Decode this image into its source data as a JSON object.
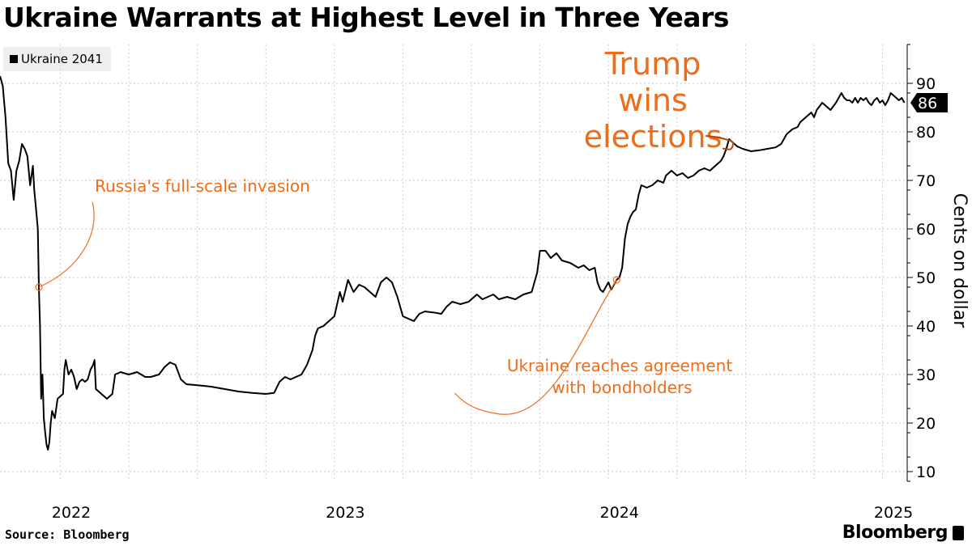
{
  "header": {
    "title": "Ukraine Warrants at Highest Level in Three Years"
  },
  "legend": {
    "label": "Ukraine 2041"
  },
  "footer": {
    "source": "Source: Bloomberg",
    "brand": "Bloomberg"
  },
  "colors": {
    "line": "#000000",
    "annotation": "#ef6c1a",
    "grid": "#cccccc"
  },
  "chart_data": {
    "type": "line",
    "title": "Ukraine Warrants at Highest Level in Three Years",
    "ylabel": "Cents on dollar",
    "ylim": [
      8,
      98
    ],
    "yticks": [
      10,
      20,
      30,
      40,
      50,
      60,
      70,
      80,
      90
    ],
    "xlim": [
      2021.78,
      2025.09
    ],
    "xticks": [
      {
        "label": "2022",
        "x": 2022.0
      },
      {
        "label": "2023",
        "x": 2023.0
      },
      {
        "label": "2024",
        "x": 2024.0
      },
      {
        "label": "2025",
        "x": 2025.0
      }
    ],
    "last_value_label": "86",
    "series": [
      {
        "name": "Ukraine 2041",
        "points": [
          [
            2021.78,
            91.5
          ],
          [
            2021.79,
            89.5
          ],
          [
            2021.8,
            83
          ],
          [
            2021.81,
            73.5
          ],
          [
            2021.82,
            72
          ],
          [
            2021.83,
            66
          ],
          [
            2021.84,
            72
          ],
          [
            2021.85,
            74
          ],
          [
            2021.86,
            77.5
          ],
          [
            2021.87,
            76.5
          ],
          [
            2021.88,
            75
          ],
          [
            2021.89,
            69
          ],
          [
            2021.9,
            73
          ],
          [
            2021.905,
            68
          ],
          [
            2021.91,
            65
          ],
          [
            2021.918,
            60
          ],
          [
            2021.922,
            48
          ],
          [
            2021.926,
            40
          ],
          [
            2021.93,
            25
          ],
          [
            2021.935,
            30
          ],
          [
            2021.94,
            21
          ],
          [
            2021.945,
            18
          ],
          [
            2021.95,
            15.5
          ],
          [
            2021.955,
            14.5
          ],
          [
            2021.96,
            16
          ],
          [
            2021.965,
            20
          ],
          [
            2021.97,
            22.5
          ],
          [
            2021.98,
            21
          ],
          [
            2021.99,
            25
          ],
          [
            2022.0,
            25.5
          ],
          [
            2022.01,
            26
          ],
          [
            2022.015,
            31
          ],
          [
            2022.02,
            33
          ],
          [
            2022.03,
            30
          ],
          [
            2022.04,
            31
          ],
          [
            2022.05,
            29.5
          ],
          [
            2022.06,
            27
          ],
          [
            2022.07,
            28.5
          ],
          [
            2022.08,
            29
          ],
          [
            2022.09,
            28.5
          ],
          [
            2022.1,
            29
          ],
          [
            2022.11,
            31
          ],
          [
            2022.12,
            32
          ],
          [
            2022.125,
            33
          ],
          [
            2022.13,
            27
          ],
          [
            2022.14,
            26.5
          ],
          [
            2022.15,
            26
          ],
          [
            2022.16,
            25.5
          ],
          [
            2022.17,
            25
          ],
          [
            2022.18,
            25.5
          ],
          [
            2022.19,
            26
          ],
          [
            2022.2,
            30
          ],
          [
            2022.22,
            30.5
          ],
          [
            2022.25,
            30
          ],
          [
            2022.28,
            30.5
          ],
          [
            2022.31,
            29.5
          ],
          [
            2022.33,
            29.5
          ],
          [
            2022.36,
            30
          ],
          [
            2022.38,
            31.5
          ],
          [
            2022.4,
            32.5
          ],
          [
            2022.42,
            32
          ],
          [
            2022.44,
            29
          ],
          [
            2022.46,
            28
          ],
          [
            2022.5,
            27.8
          ],
          [
            2022.55,
            27.5
          ],
          [
            2022.6,
            27
          ],
          [
            2022.65,
            26.5
          ],
          [
            2022.7,
            26.2
          ],
          [
            2022.75,
            26
          ],
          [
            2022.78,
            26.2
          ],
          [
            2022.8,
            28.5
          ],
          [
            2022.82,
            29.5
          ],
          [
            2022.84,
            29
          ],
          [
            2022.86,
            29.5
          ],
          [
            2022.88,
            30
          ],
          [
            2022.9,
            32
          ],
          [
            2022.92,
            35
          ],
          [
            2022.93,
            38
          ],
          [
            2022.94,
            39.5
          ],
          [
            2022.96,
            40
          ],
          [
            2022.98,
            41
          ],
          [
            2023.0,
            42
          ],
          [
            2023.02,
            47
          ],
          [
            2023.03,
            45
          ],
          [
            2023.05,
            49.5
          ],
          [
            2023.07,
            47
          ],
          [
            2023.09,
            48.5
          ],
          [
            2023.11,
            48
          ],
          [
            2023.13,
            47
          ],
          [
            2023.15,
            46
          ],
          [
            2023.17,
            49
          ],
          [
            2023.19,
            50
          ],
          [
            2023.21,
            49
          ],
          [
            2023.23,
            46
          ],
          [
            2023.25,
            42
          ],
          [
            2023.27,
            41.5
          ],
          [
            2023.29,
            41
          ],
          [
            2023.31,
            42.5
          ],
          [
            2023.33,
            43
          ],
          [
            2023.36,
            42.8
          ],
          [
            2023.39,
            42.5
          ],
          [
            2023.41,
            44
          ],
          [
            2023.43,
            45
          ],
          [
            2023.46,
            44.5
          ],
          [
            2023.49,
            45
          ],
          [
            2023.52,
            46.5
          ],
          [
            2023.54,
            45.5
          ],
          [
            2023.56,
            46
          ],
          [
            2023.58,
            46.5
          ],
          [
            2023.6,
            45.5
          ],
          [
            2023.63,
            46
          ],
          [
            2023.66,
            45.5
          ],
          [
            2023.69,
            46.5
          ],
          [
            2023.72,
            47
          ],
          [
            2023.74,
            51
          ],
          [
            2023.75,
            55.5
          ],
          [
            2023.77,
            55.5
          ],
          [
            2023.79,
            54
          ],
          [
            2023.81,
            55
          ],
          [
            2023.83,
            53.5
          ],
          [
            2023.86,
            53
          ],
          [
            2023.89,
            52
          ],
          [
            2023.91,
            52.5
          ],
          [
            2023.93,
            51.5
          ],
          [
            2023.95,
            52
          ],
          [
            2023.96,
            49
          ],
          [
            2023.97,
            47.5
          ],
          [
            2023.98,
            47
          ],
          [
            2023.99,
            48
          ],
          [
            2024.0,
            49
          ],
          [
            2024.01,
            47.5
          ],
          [
            2024.02,
            48.5
          ],
          [
            2024.03,
            49.5
          ],
          [
            2024.04,
            50
          ],
          [
            2024.05,
            52
          ],
          [
            2024.06,
            58
          ],
          [
            2024.07,
            61
          ],
          [
            2024.08,
            62.5
          ],
          [
            2024.09,
            63.5
          ],
          [
            2024.1,
            64
          ],
          [
            2024.11,
            67
          ],
          [
            2024.12,
            69
          ],
          [
            2024.14,
            68.5
          ],
          [
            2024.16,
            69
          ],
          [
            2024.18,
            70
          ],
          [
            2024.2,
            69.5
          ],
          [
            2024.21,
            71
          ],
          [
            2024.23,
            72
          ],
          [
            2024.25,
            71
          ],
          [
            2024.27,
            71.5
          ],
          [
            2024.29,
            70.5
          ],
          [
            2024.31,
            71
          ],
          [
            2024.33,
            72
          ],
          [
            2024.35,
            72.5
          ],
          [
            2024.37,
            72
          ],
          [
            2024.39,
            73
          ],
          [
            2024.41,
            74
          ],
          [
            2024.42,
            75
          ],
          [
            2024.43,
            76.5
          ],
          [
            2024.44,
            78.5
          ],
          [
            2024.45,
            78
          ],
          [
            2024.47,
            77
          ],
          [
            2024.49,
            76.5
          ],
          [
            2024.52,
            76
          ],
          [
            2024.55,
            76.2
          ],
          [
            2024.58,
            76.5
          ],
          [
            2024.61,
            76.8
          ],
          [
            2024.63,
            77.5
          ],
          [
            2024.65,
            79.5
          ],
          [
            2024.67,
            80.5
          ],
          [
            2024.69,
            81
          ],
          [
            2024.7,
            82
          ],
          [
            2024.72,
            83
          ],
          [
            2024.74,
            84
          ],
          [
            2024.75,
            83
          ],
          [
            2024.76,
            84.5
          ],
          [
            2024.78,
            86
          ],
          [
            2024.8,
            85
          ],
          [
            2024.81,
            84.5
          ],
          [
            2024.83,
            86
          ],
          [
            2024.85,
            88
          ],
          [
            2024.86,
            87
          ],
          [
            2024.87,
            86.5
          ],
          [
            2024.88,
            86.5
          ],
          [
            2024.89,
            86
          ],
          [
            2024.9,
            87
          ],
          [
            2024.91,
            86
          ],
          [
            2024.92,
            87
          ],
          [
            2024.93,
            86.5
          ],
          [
            2024.94,
            87
          ],
          [
            2024.95,
            86
          ],
          [
            2024.96,
            85.5
          ],
          [
            2024.97,
            86.5
          ],
          [
            2024.98,
            87
          ],
          [
            2024.99,
            86
          ],
          [
            2025.0,
            86.5
          ],
          [
            2025.01,
            85.5
          ],
          [
            2025.02,
            86.5
          ],
          [
            2025.03,
            88
          ],
          [
            2025.04,
            87.5
          ],
          [
            2025.05,
            87
          ],
          [
            2025.06,
            86.5
          ],
          [
            2025.07,
            87
          ],
          [
            2025.08,
            86
          ]
        ]
      }
    ],
    "annotations": [
      {
        "text": "Russia's full-scale invasion",
        "x": 2021.922,
        "y": 48
      },
      {
        "text_line1": "Ukraine reaches agreement",
        "text_line2": "with bondholders",
        "x": 2024.03,
        "y": 49.5
      },
      {
        "text_line1": "Trump",
        "text_line2": "wins",
        "text_line3": "elections",
        "x": 2024.44,
        "y": 76.5
      }
    ]
  }
}
